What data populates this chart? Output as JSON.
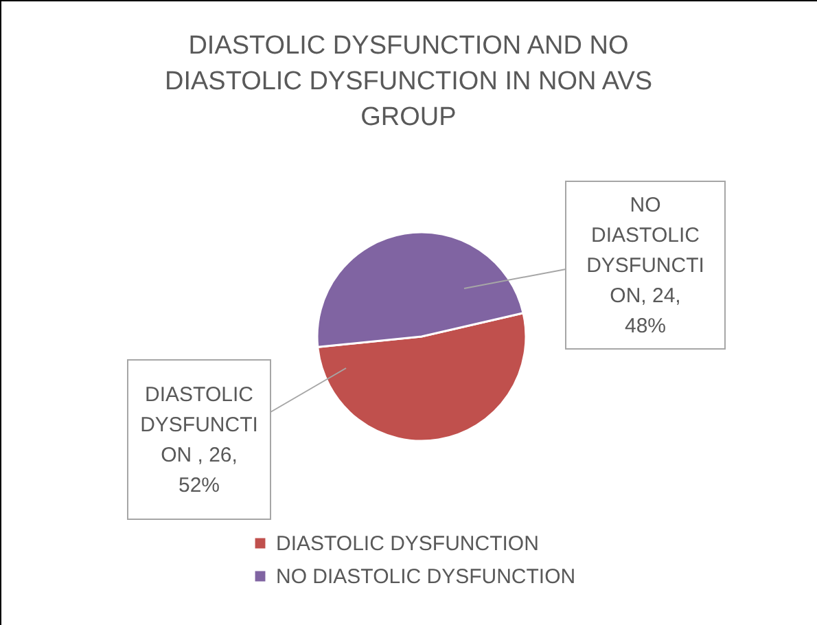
{
  "chart_data": {
    "type": "pie",
    "title": "DIASTOLIC DYSFUNCTION AND NO DIASTOLIC DYSFUNCTION IN NON AVS GROUP",
    "categories": [
      "DIASTOLIC DYSFUNCTION",
      "NO DIASTOLIC DYSFUNCTION"
    ],
    "values": [
      26,
      24
    ],
    "colors": [
      "#c0504d",
      "#8064a2"
    ],
    "value_labels": [
      "DIASTOLIC DYSFUNCTION , 26, 52%",
      "NO DIASTOLIC DYSFUNCTION, 24, 48%"
    ],
    "legend": "bottom"
  }
}
